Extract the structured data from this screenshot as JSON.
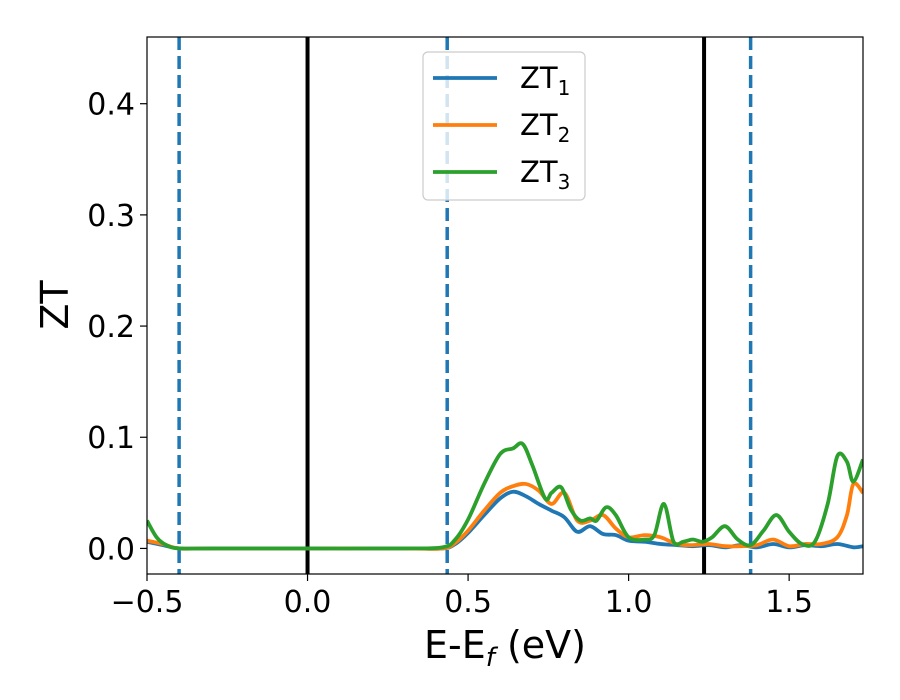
{
  "chart_data": {
    "type": "line",
    "xlabel_main": "E-E",
    "xlabel_sub": "f",
    "xlabel_unit": " (eV)",
    "ylabel": "ZT",
    "xlim": [
      -0.5,
      1.73
    ],
    "ylim": [
      -0.023,
      0.46
    ],
    "x_ticks": [
      -0.5,
      0.0,
      0.5,
      1.0,
      1.5
    ],
    "x_tick_labels": [
      "−0.5",
      "0.0",
      "0.5",
      "1.0",
      "1.5"
    ],
    "y_ticks": [
      0.0,
      0.1,
      0.2,
      0.3,
      0.4
    ],
    "y_tick_labels": [
      "0.0",
      "0.1",
      "0.2",
      "0.3",
      "0.4"
    ],
    "grid": false,
    "legend_position": "top-center",
    "vlines": [
      {
        "x": -0.4,
        "style": "dashed",
        "color": "#1f77b4"
      },
      {
        "x": 0.0,
        "style": "solid",
        "color": "#000000"
      },
      {
        "x": 0.435,
        "style": "dashed",
        "color": "#1f77b4"
      },
      {
        "x": 1.235,
        "style": "solid",
        "color": "#000000"
      },
      {
        "x": 1.38,
        "style": "dashed",
        "color": "#1f77b4"
      }
    ],
    "series": [
      {
        "name": "ZT",
        "sub": "1",
        "color": "#1f77b4",
        "x": [
          -0.5,
          -0.45,
          -0.4,
          -0.3,
          0.0,
          0.3,
          0.42,
          0.46,
          0.5,
          0.55,
          0.6,
          0.64,
          0.68,
          0.72,
          0.76,
          0.8,
          0.84,
          0.88,
          0.92,
          0.96,
          1.0,
          1.05,
          1.1,
          1.15,
          1.2,
          1.25,
          1.3,
          1.35,
          1.4,
          1.45,
          1.5,
          1.55,
          1.6,
          1.65,
          1.7,
          1.73
        ],
        "y": [
          0.006,
          0.003,
          0.0,
          0.0,
          0.0,
          0.0,
          0.0,
          0.004,
          0.014,
          0.03,
          0.045,
          0.051,
          0.047,
          0.04,
          0.034,
          0.028,
          0.015,
          0.02,
          0.013,
          0.012,
          0.007,
          0.006,
          0.004,
          0.003,
          0.002,
          0.003,
          0.001,
          0.003,
          0.001,
          0.004,
          0.001,
          0.003,
          0.002,
          0.004,
          0.001,
          0.002
        ]
      },
      {
        "name": "ZT",
        "sub": "2",
        "color": "#ff7f0e",
        "x": [
          -0.5,
          -0.45,
          -0.4,
          -0.3,
          0.0,
          0.3,
          0.42,
          0.46,
          0.5,
          0.55,
          0.6,
          0.64,
          0.68,
          0.72,
          0.76,
          0.8,
          0.84,
          0.88,
          0.92,
          0.96,
          1.0,
          1.05,
          1.1,
          1.15,
          1.2,
          1.25,
          1.3,
          1.35,
          1.4,
          1.45,
          1.5,
          1.55,
          1.6,
          1.65,
          1.68,
          1.7,
          1.73
        ],
        "y": [
          0.007,
          0.004,
          0.0,
          0.0,
          0.0,
          0.0,
          0.0,
          0.005,
          0.016,
          0.034,
          0.05,
          0.056,
          0.058,
          0.052,
          0.04,
          0.05,
          0.025,
          0.025,
          0.03,
          0.018,
          0.01,
          0.012,
          0.01,
          0.004,
          0.003,
          0.004,
          0.002,
          0.002,
          0.003,
          0.008,
          0.002,
          0.004,
          0.004,
          0.01,
          0.03,
          0.058,
          0.05
        ]
      },
      {
        "name": "ZT",
        "sub": "3",
        "color": "#2ca02c",
        "x": [
          -0.5,
          -0.47,
          -0.44,
          -0.4,
          -0.3,
          0.0,
          0.3,
          0.42,
          0.46,
          0.5,
          0.55,
          0.6,
          0.64,
          0.67,
          0.7,
          0.74,
          0.76,
          0.79,
          0.82,
          0.85,
          0.88,
          0.9,
          0.93,
          0.96,
          1.0,
          1.05,
          1.08,
          1.11,
          1.14,
          1.17,
          1.2,
          1.23,
          1.26,
          1.3,
          1.34,
          1.38,
          1.42,
          1.46,
          1.5,
          1.54,
          1.58,
          1.62,
          1.65,
          1.68,
          1.7,
          1.73
        ],
        "y": [
          0.025,
          0.01,
          0.003,
          0.0,
          0.0,
          0.0,
          0.0,
          0.001,
          0.008,
          0.026,
          0.058,
          0.085,
          0.09,
          0.094,
          0.075,
          0.045,
          0.05,
          0.055,
          0.035,
          0.025,
          0.027,
          0.025,
          0.037,
          0.03,
          0.01,
          0.008,
          0.012,
          0.04,
          0.006,
          0.006,
          0.008,
          0.006,
          0.01,
          0.02,
          0.008,
          0.003,
          0.016,
          0.03,
          0.015,
          0.004,
          0.006,
          0.04,
          0.083,
          0.078,
          0.06,
          0.08
        ]
      }
    ]
  }
}
